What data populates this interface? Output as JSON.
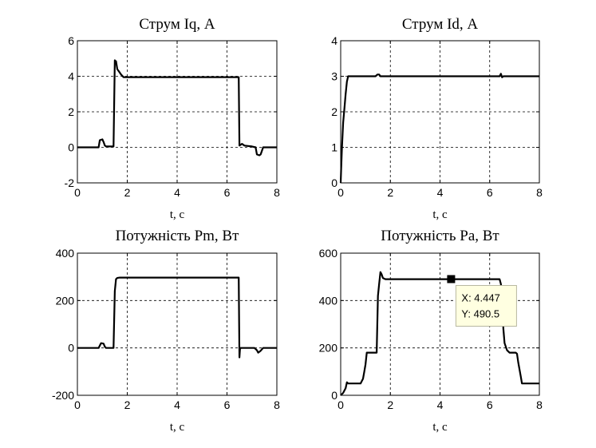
{
  "chart_data": [
    {
      "type": "line",
      "title": "Струм Iq, А",
      "xlabel": "t,  c",
      "ylabel": "",
      "xlim": [
        0,
        8
      ],
      "ylim": [
        -2,
        6
      ],
      "xticks": [
        0,
        2,
        4,
        6,
        8
      ],
      "yticks": [
        -2,
        0,
        2,
        4,
        6
      ],
      "grid": true,
      "series": [
        {
          "x": [
            0,
            0.85,
            0.9,
            1.0,
            1.05,
            1.1,
            1.15,
            1.45,
            1.5,
            1.52,
            1.55,
            1.6,
            1.65,
            1.75,
            1.85,
            2.0,
            6.4,
            6.47,
            6.5,
            6.55,
            6.6,
            6.7,
            7.0,
            7.15,
            7.2,
            7.3,
            7.35,
            7.45,
            7.55,
            8.0
          ],
          "y": [
            0,
            0,
            0.4,
            0.45,
            0.3,
            0.1,
            0.05,
            0.05,
            4.9,
            4.7,
            4.85,
            4.4,
            4.3,
            4.1,
            3.95,
            3.95,
            3.95,
            3.95,
            0.1,
            0.15,
            0.2,
            0.1,
            0.05,
            0.0,
            -0.4,
            -0.45,
            -0.4,
            0.0,
            0.0,
            0.0
          ]
        }
      ]
    },
    {
      "type": "line",
      "title": "Струм Id, А",
      "xlabel": "t,  c",
      "ylabel": "",
      "xlim": [
        0,
        8
      ],
      "ylim": [
        0,
        4
      ],
      "xticks": [
        0,
        2,
        4,
        6,
        8
      ],
      "yticks": [
        0,
        1,
        2,
        3,
        4
      ],
      "grid": true,
      "series": [
        {
          "x": [
            0,
            0.02,
            0.05,
            0.1,
            0.15,
            0.2,
            0.25,
            0.3,
            1.4,
            1.48,
            1.55,
            1.6,
            6.4,
            6.45,
            6.5,
            6.55,
            8.0
          ],
          "y": [
            0,
            0.4,
            1.0,
            1.7,
            2.1,
            2.5,
            2.85,
            3.0,
            3.0,
            3.05,
            3.05,
            3.0,
            3.0,
            3.07,
            2.97,
            3.0,
            3.0
          ]
        }
      ]
    },
    {
      "type": "line",
      "title": "Потужність Pm, Вт",
      "xlabel": "t,  c",
      "ylabel": "",
      "xlim": [
        0,
        8
      ],
      "ylim": [
        -200,
        400
      ],
      "xticks": [
        0,
        2,
        4,
        6,
        8
      ],
      "yticks": [
        -200,
        0,
        200,
        400
      ],
      "grid": true,
      "series": [
        {
          "x": [
            0,
            0.85,
            0.9,
            0.95,
            1.05,
            1.1,
            1.15,
            1.45,
            1.5,
            1.55,
            1.6,
            1.7,
            6.4,
            6.47,
            6.5,
            6.52,
            6.55,
            6.6,
            7.1,
            7.2,
            7.25,
            7.35,
            7.45,
            7.6,
            8.0
          ],
          "y": [
            0,
            0,
            10,
            20,
            18,
            5,
            0,
            0,
            240,
            290,
            295,
            297,
            297,
            297,
            -40,
            -5,
            0,
            0,
            0,
            -10,
            -20,
            -12,
            0,
            0,
            0
          ]
        }
      ]
    },
    {
      "type": "line",
      "title": "Потужність Pa, Вт",
      "xlabel": "t,  c",
      "ylabel": "",
      "xlim": [
        0,
        8
      ],
      "ylim": [
        0,
        600
      ],
      "xticks": [
        0,
        2,
        4,
        6,
        8
      ],
      "yticks": [
        0,
        200,
        400,
        600
      ],
      "grid": true,
      "annotation": {
        "x_label": "X: 4.447",
        "y_label": "Y: 490.5",
        "x": 4.447,
        "y": 490.5
      },
      "series": [
        {
          "x": [
            0,
            0.1,
            0.2,
            0.25,
            0.3,
            0.35,
            0.45,
            0.8,
            0.9,
            0.95,
            1.0,
            1.05,
            1.45,
            1.5,
            1.55,
            1.6,
            1.65,
            1.7,
            1.8,
            6.4,
            6.45,
            6.5,
            6.55,
            6.6,
            6.7,
            6.8,
            7.05,
            7.1,
            7.15,
            7.2,
            7.25,
            7.3,
            8.0
          ],
          "y": [
            0,
            10,
            30,
            55,
            50,
            50,
            50,
            50,
            70,
            100,
            130,
            180,
            180,
            420,
            470,
            520,
            510,
            495,
            490,
            490,
            470,
            400,
            280,
            220,
            190,
            180,
            180,
            175,
            140,
            110,
            80,
            50,
            50
          ]
        }
      ]
    }
  ]
}
